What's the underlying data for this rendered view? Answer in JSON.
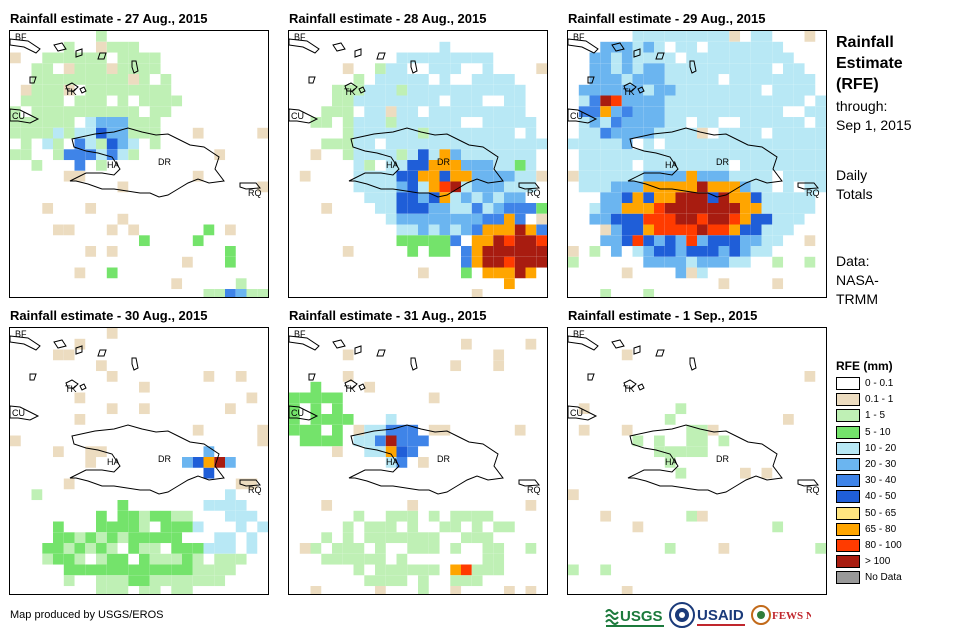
{
  "panels": [
    {
      "title": "Rainfall estimate - 27 Aug., 2015"
    },
    {
      "title": "Rainfall estimate - 28 Aug., 2015"
    },
    {
      "title": "Rainfall estimate - 29 Aug., 2015"
    },
    {
      "title": "Rainfall estimate - 30 Aug., 2015"
    },
    {
      "title": "Rainfall estimate - 31 Aug., 2015"
    },
    {
      "title": "Rainfall estimate - 1 Sep., 2015"
    }
  ],
  "map_labels": {
    "bf": "BF",
    "tk": "TK",
    "cu": "CU",
    "ha": "HA",
    "dr": "DR",
    "rq": "RQ"
  },
  "sidebar": {
    "title_lines": [
      "Rainfall",
      "Estimate",
      "(RFE)"
    ],
    "through_label": "through:",
    "through_date": "Sep 1, 2015",
    "daily_totals": [
      "Daily",
      "Totals"
    ],
    "data_source": [
      "Data:",
      "NASA-",
      "TRMM"
    ]
  },
  "legend": {
    "title": "RFE (mm)",
    "items": [
      {
        "label": "0 - 0.1",
        "color": "#ffffff"
      },
      {
        "label": "0.1 - 1",
        "color": "#ecdcc0"
      },
      {
        "label": "1 - 5",
        "color": "#bff0b5"
      },
      {
        "label": "5 - 10",
        "color": "#74e36b"
      },
      {
        "label": "10 - 20",
        "color": "#b8e8f5"
      },
      {
        "label": "20 - 30",
        "color": "#6bb5f0"
      },
      {
        "label": "30 - 40",
        "color": "#3f84e8"
      },
      {
        "label": "40 - 50",
        "color": "#1f5ed8"
      },
      {
        "label": "50 - 65",
        "color": "#ffe580"
      },
      {
        "label": "65 - 80",
        "color": "#ffa500"
      },
      {
        "label": "80 - 100",
        "color": "#ff3b00"
      },
      {
        "label": "> 100",
        "color": "#a81c10"
      },
      {
        "label": "No Data",
        "color": "#999999"
      }
    ]
  },
  "credit": "Map produced by USGS/EROS",
  "logos": {
    "usgs": "USGS",
    "usaid": "USAID",
    "fewsnet": "FEWS NET"
  }
}
